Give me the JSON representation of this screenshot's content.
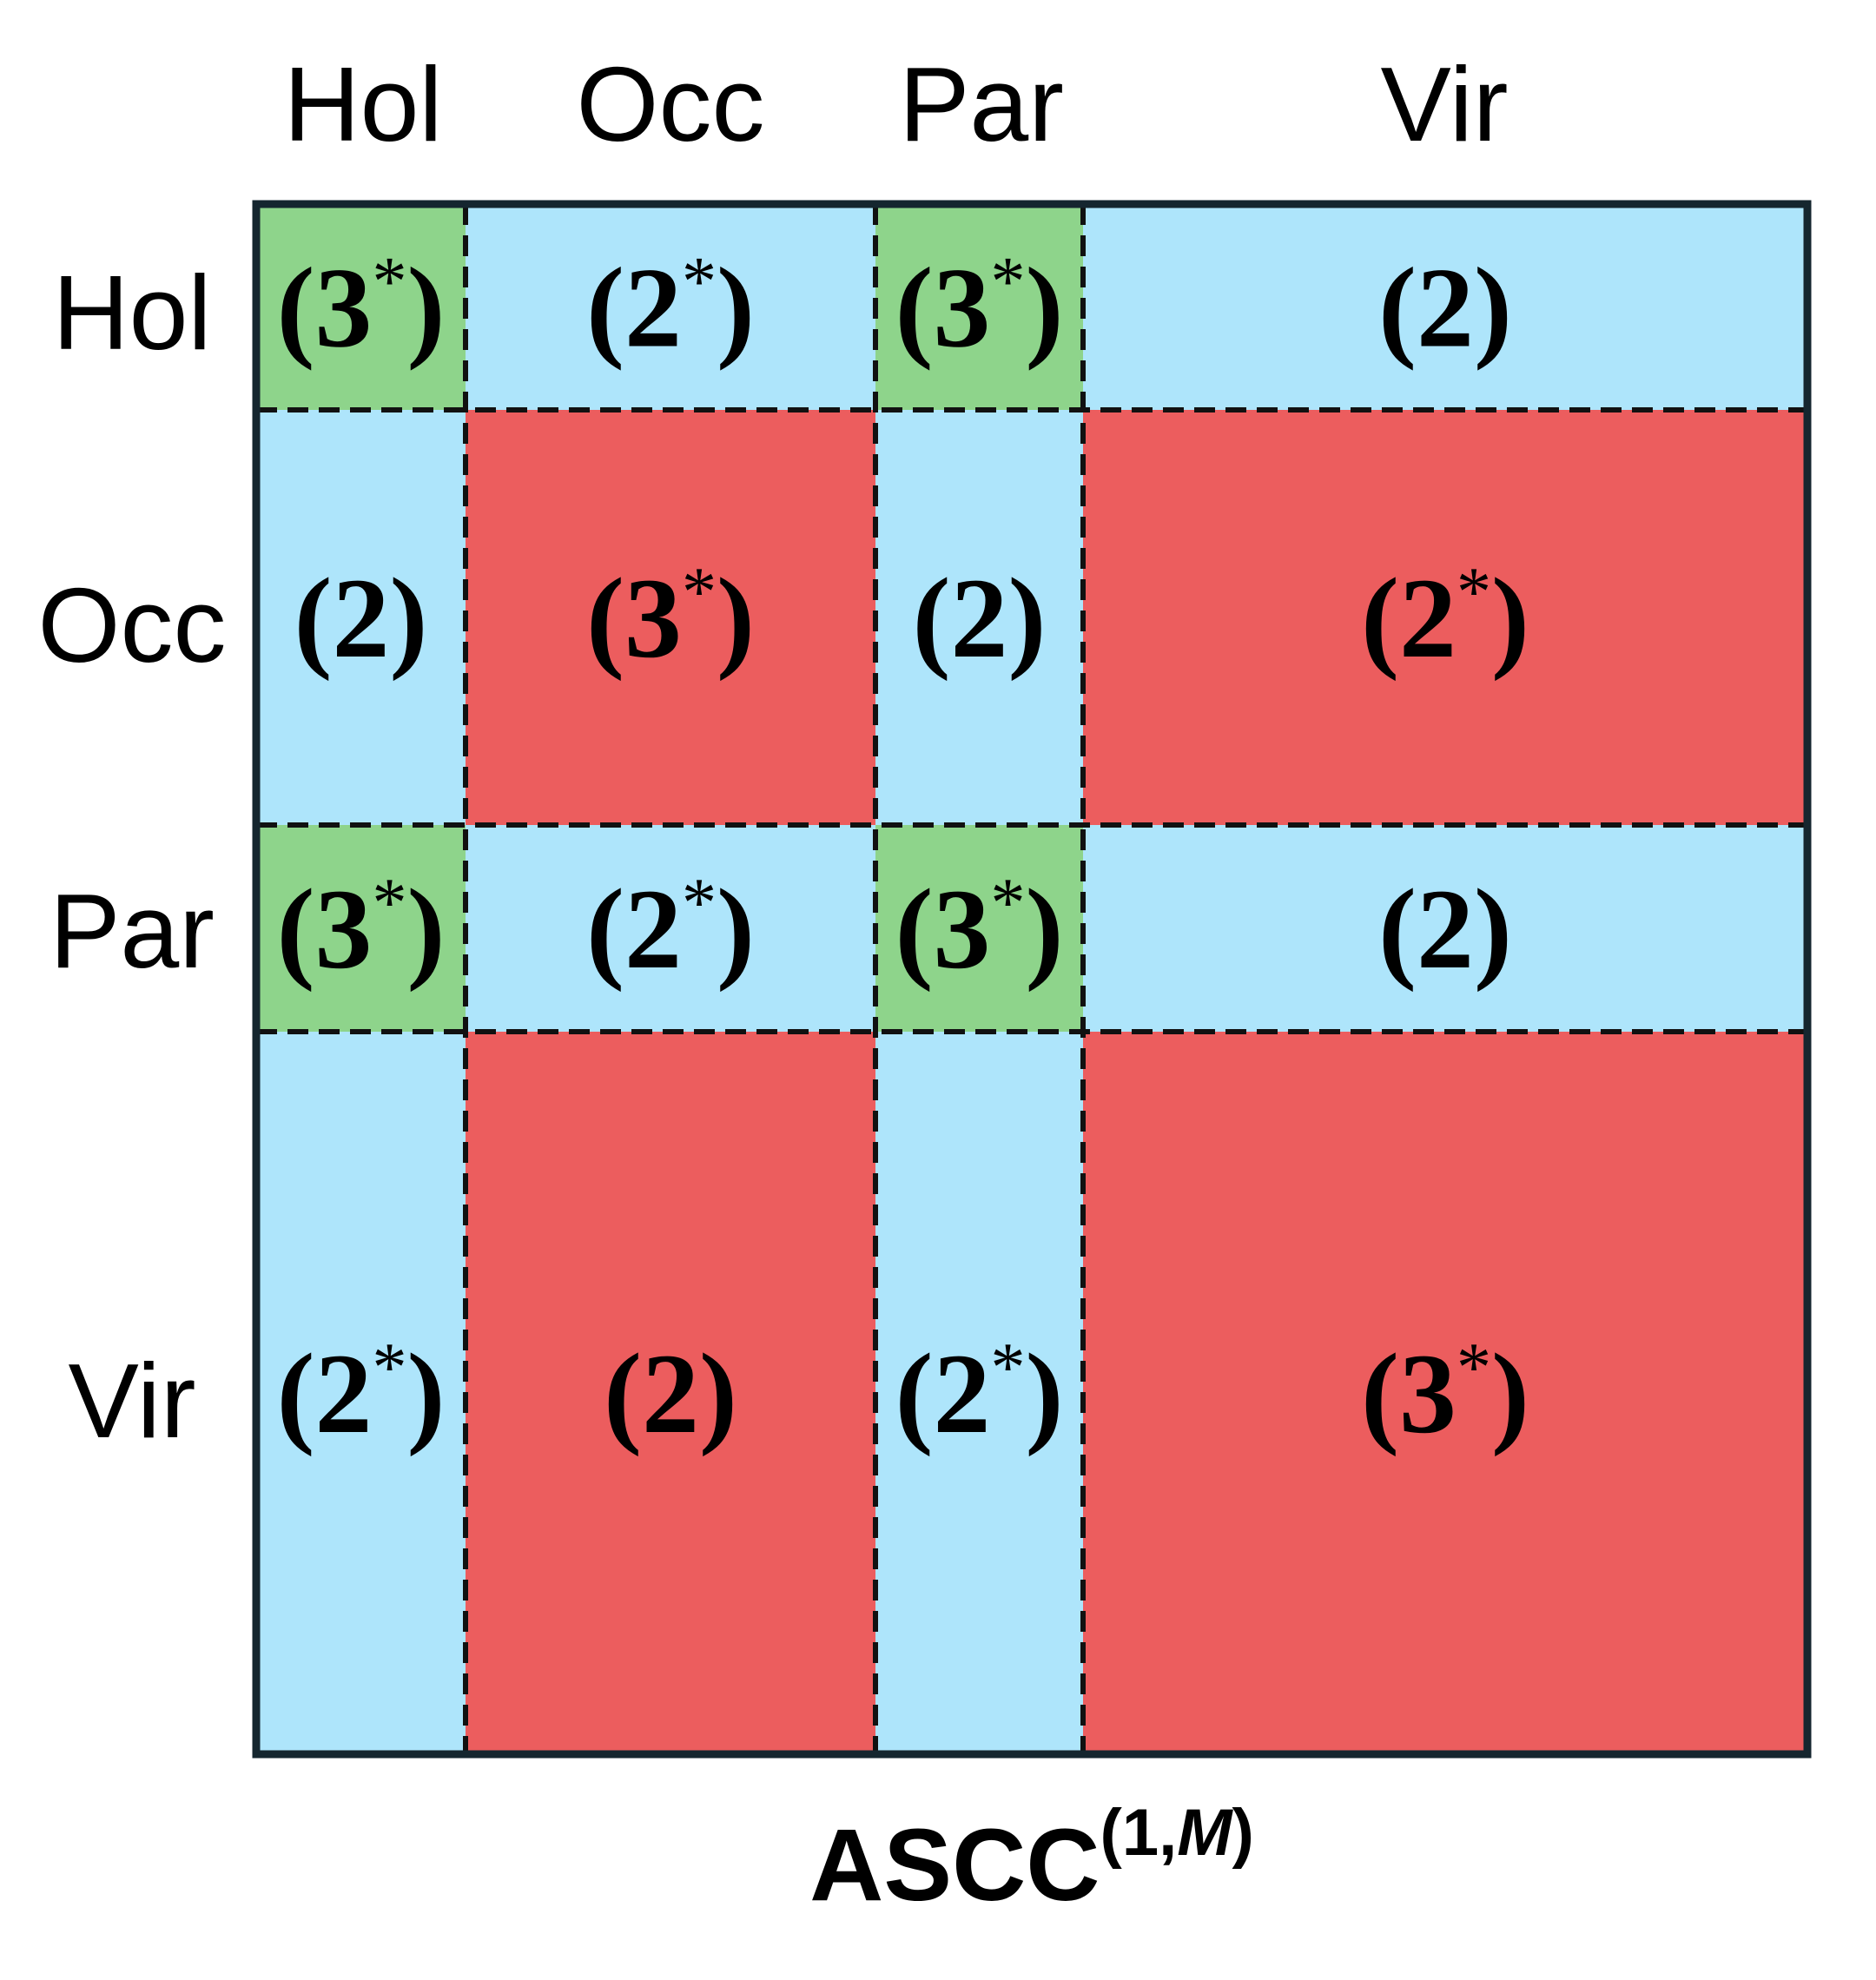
{
  "column_labels": [
    "Hol",
    "Occ",
    "Par",
    "Vir"
  ],
  "row_labels": [
    "Hol",
    "Occ",
    "Par",
    "Vir"
  ],
  "colors": {
    "green": "#8ed48b",
    "blue": "#aee5fb",
    "red": "#ec5d5e"
  },
  "cells": [
    [
      {
        "color": "green",
        "text": [
          "(3",
          "*",
          ")"
        ]
      },
      {
        "color": "blue",
        "text": [
          "(2",
          "*",
          ")"
        ]
      },
      {
        "color": "green",
        "text": [
          "(3",
          "*",
          ")"
        ]
      },
      {
        "color": "blue",
        "text": [
          "(2)"
        ]
      }
    ],
    [
      {
        "color": "blue",
        "text": [
          "(2)"
        ]
      },
      {
        "color": "red",
        "text": [
          "(3",
          "*",
          ")"
        ]
      },
      {
        "color": "blue",
        "text": [
          "(2)"
        ]
      },
      {
        "color": "red",
        "text": [
          "(2",
          "*",
          ")"
        ]
      }
    ],
    [
      {
        "color": "green",
        "text": [
          "(3",
          "*",
          ")"
        ]
      },
      {
        "color": "blue",
        "text": [
          "(2",
          "*",
          ")"
        ]
      },
      {
        "color": "green",
        "text": [
          "(3",
          "*",
          ")"
        ]
      },
      {
        "color": "blue",
        "text": [
          "(2)"
        ]
      }
    ],
    [
      {
        "color": "blue",
        "text": [
          "(2",
          "*",
          ")"
        ]
      },
      {
        "color": "red",
        "text": [
          "(2)"
        ]
      },
      {
        "color": "blue",
        "text": [
          "(2",
          "*",
          ")"
        ]
      },
      {
        "color": "red",
        "text": [
          "(3",
          "*",
          ")"
        ]
      }
    ]
  ],
  "title": [
    "ASCC",
    "(1,",
    "M",
    ")"
  ]
}
